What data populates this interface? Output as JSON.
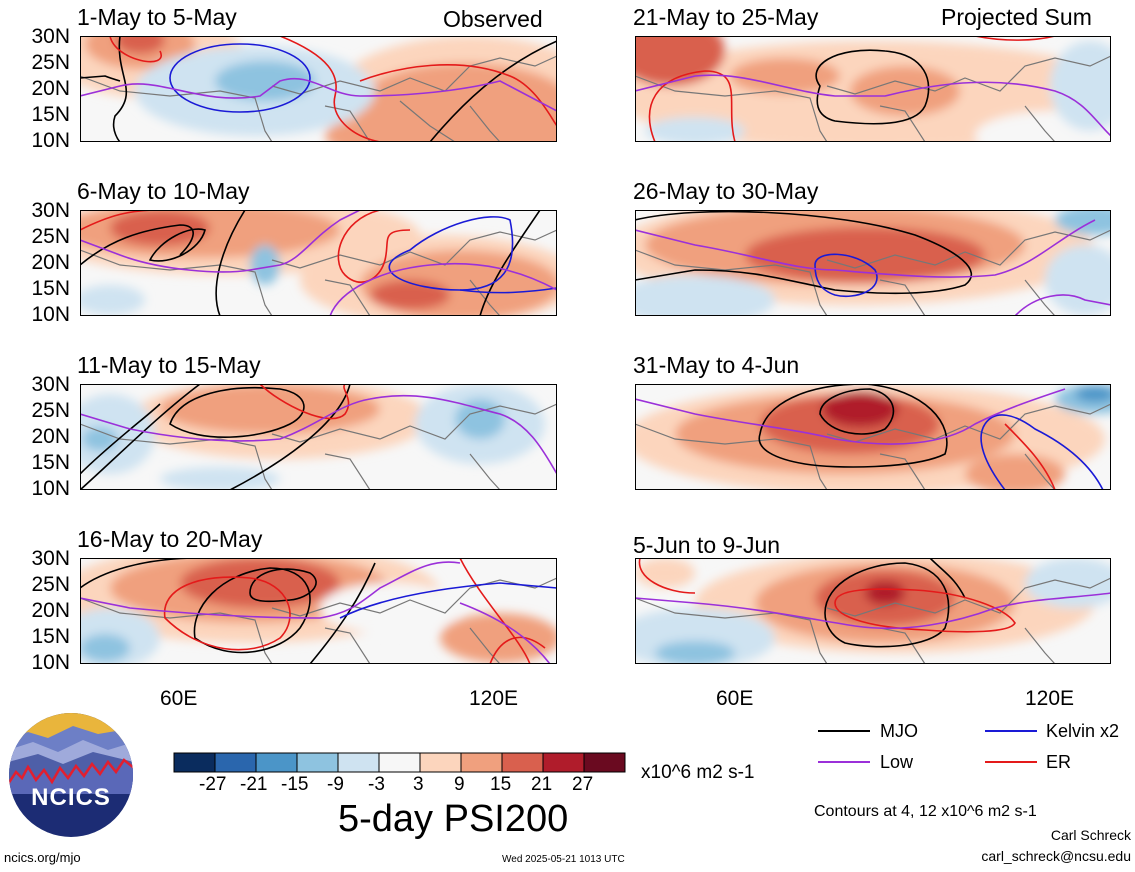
{
  "panels": [
    {
      "title": "1-May to 5-May",
      "tag": "Observed"
    },
    {
      "title": "21-May to 25-May",
      "tag": "Projected Sum"
    },
    {
      "title": "6-May to 10-May",
      "tag": ""
    },
    {
      "title": "26-May to 30-May",
      "tag": ""
    },
    {
      "title": "11-May to 15-May",
      "tag": ""
    },
    {
      "title": "31-May to 4-Jun",
      "tag": ""
    },
    {
      "title": "16-May to 20-May",
      "tag": ""
    },
    {
      "title": "5-Jun to 9-Jun",
      "tag": ""
    }
  ],
  "y_ticks": [
    "30N",
    "25N",
    "20N",
    "15N",
    "10N"
  ],
  "x_ticks": [
    "60E",
    "120E"
  ],
  "colorbar": {
    "labels": [
      "-27",
      "-21",
      "-15",
      "-9",
      "-3",
      "3",
      "9",
      "15",
      "21",
      "27"
    ],
    "colors": [
      "#0a2c5e",
      "#2a66ad",
      "#4b95c8",
      "#8ec3e0",
      "#cfe3f1",
      "#f7f7f7",
      "#fcd5bd",
      "#f0a07e",
      "#d9604e",
      "#b01c2b",
      "#6a0a20"
    ],
    "units": "x10^6 m2 s-1",
    "title": "5-day PSI200"
  },
  "legend": {
    "mjo": "MJO",
    "kelvin": "Kelvin x2",
    "low": "Low",
    "er": "ER",
    "colors": {
      "mjo": "#000000",
      "kelvin": "#1a1ad6",
      "low": "#9b30d9",
      "er": "#e41a1a"
    }
  },
  "contours_note": "Contours at 4, 12 x10^6 m2 s-1",
  "author": "Carl Schreck",
  "email": "carl_schreck@ncsu.edu",
  "site": "ncics.org/mjo",
  "timestamp": "Wed 2025-05-21 1013 UTC",
  "logo_text": "NCICS"
}
